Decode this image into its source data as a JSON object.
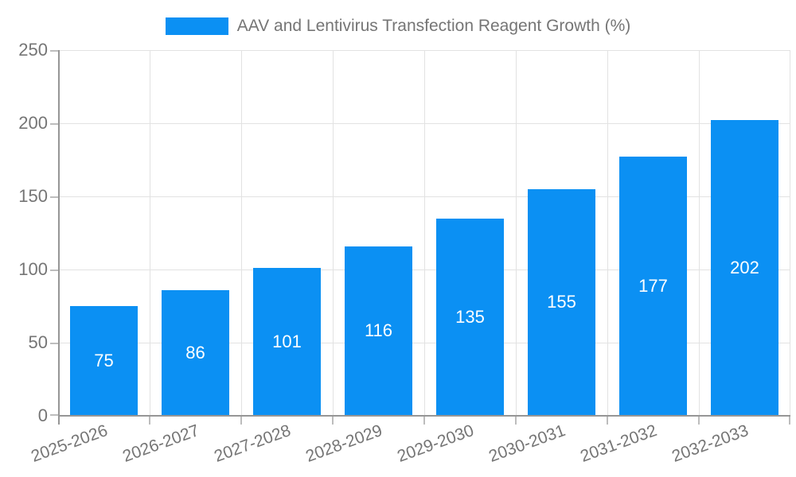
{
  "legend": {
    "label": "AAV and Lentivirus Transfection Reagent Growth (%)"
  },
  "chart_data": {
    "type": "bar",
    "title": "AAV and Lentivirus Transfection Reagent Growth (%)",
    "categories": [
      "2025-2026",
      "2026-2027",
      "2027-2028",
      "2028-2029",
      "2029-2030",
      "2030-2031",
      "2031-2032",
      "2032-2033"
    ],
    "values": [
      75,
      86,
      101,
      116,
      135,
      155,
      177,
      202
    ],
    "value_labels": [
      "75",
      "86",
      "101",
      "116",
      "135",
      "155",
      "177",
      "202"
    ],
    "y_tick_labels": [
      "0",
      "50",
      "100",
      "150",
      "200",
      "250"
    ],
    "yticks": [
      0,
      50,
      100,
      150,
      200,
      250
    ],
    "ylim": [
      0,
      250
    ],
    "xlabel": "",
    "ylabel": "",
    "grid": true,
    "legend_position": "top-center",
    "x_label_rotation_deg": -20,
    "colors": {
      "bar": "#0b90f3",
      "value_label": "#ffffff",
      "grid": "#e2e2e2",
      "axis": "#969696",
      "tick_mark": "#bdbdbd",
      "tick_label": "#757575",
      "background": "#ffffff"
    }
  }
}
